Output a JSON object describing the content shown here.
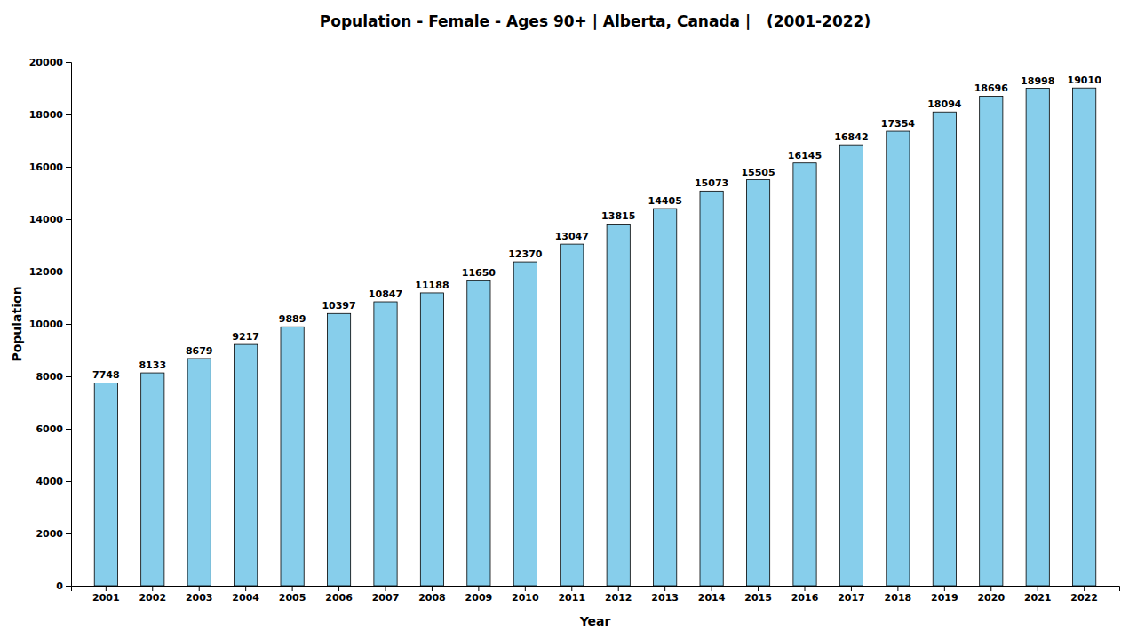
{
  "chart_data": {
    "type": "bar",
    "title": "Population - Female - Ages 90+ | Alberta, Canada |   (2001-2022)",
    "xlabel": "Year",
    "ylabel": "Population",
    "categories": [
      "2001",
      "2002",
      "2003",
      "2004",
      "2005",
      "2006",
      "2007",
      "2008",
      "2009",
      "2010",
      "2011",
      "2012",
      "2013",
      "2014",
      "2015",
      "2016",
      "2017",
      "2018",
      "2019",
      "2020",
      "2021",
      "2022"
    ],
    "values": [
      7748,
      8133,
      8679,
      9217,
      9889,
      10397,
      10847,
      11188,
      11650,
      12370,
      13047,
      13815,
      14405,
      15073,
      15505,
      16145,
      16842,
      17354,
      18094,
      18696,
      18998,
      19010
    ],
    "color": "#87CEEB",
    "ylim": [
      0,
      20000
    ],
    "yticks": [
      0,
      2000,
      4000,
      6000,
      8000,
      10000,
      12000,
      14000,
      16000,
      18000,
      20000
    ],
    "grid": false,
    "data_labels": true
  }
}
